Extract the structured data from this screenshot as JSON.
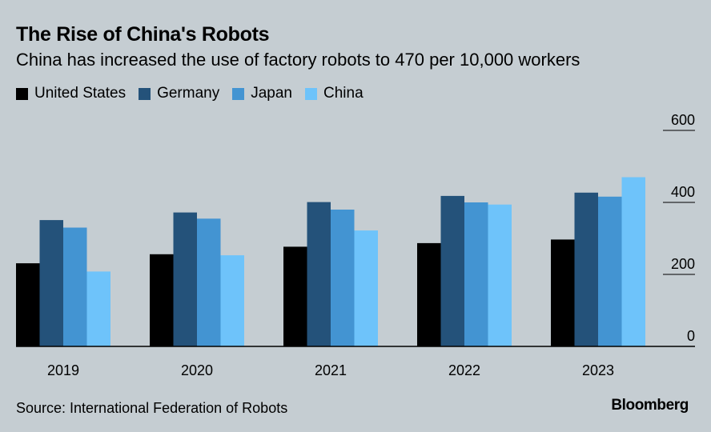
{
  "title": "The Rise of China's Robots",
  "subtitle": "China has increased the use of factory robots to 470 per 10,000 workers",
  "source": "Source: International Federation of Robots",
  "brand": "Bloomberg",
  "colors": {
    "background": "#c5cdd2",
    "United States": "#000000",
    "Germany": "#24527a",
    "Japan": "#4394d2",
    "China": "#6ec3fa"
  },
  "chart_data": {
    "type": "bar",
    "title": "The Rise of China's Robots",
    "subtitle": "China has increased the use of factory robots to 470 per 10,000 workers",
    "xlabel": "",
    "ylabel": "",
    "ylim": [
      0,
      600
    ],
    "yticks": [
      0,
      200,
      400,
      600
    ],
    "ytick_labels": [
      "0",
      "200",
      "400",
      "600"
    ],
    "grid": false,
    "legend_position": "top-left",
    "categories": [
      "2019",
      "2020",
      "2021",
      "2022",
      "2023"
    ],
    "series": [
      {
        "name": "United States",
        "values": [
          231,
          256,
          277,
          287,
          297
        ]
      },
      {
        "name": "Germany",
        "values": [
          351,
          372,
          401,
          418,
          427
        ]
      },
      {
        "name": "Japan",
        "values": [
          330,
          355,
          380,
          400,
          416
        ]
      },
      {
        "name": "China",
        "values": [
          208,
          253,
          322,
          394,
          470
        ]
      }
    ]
  }
}
